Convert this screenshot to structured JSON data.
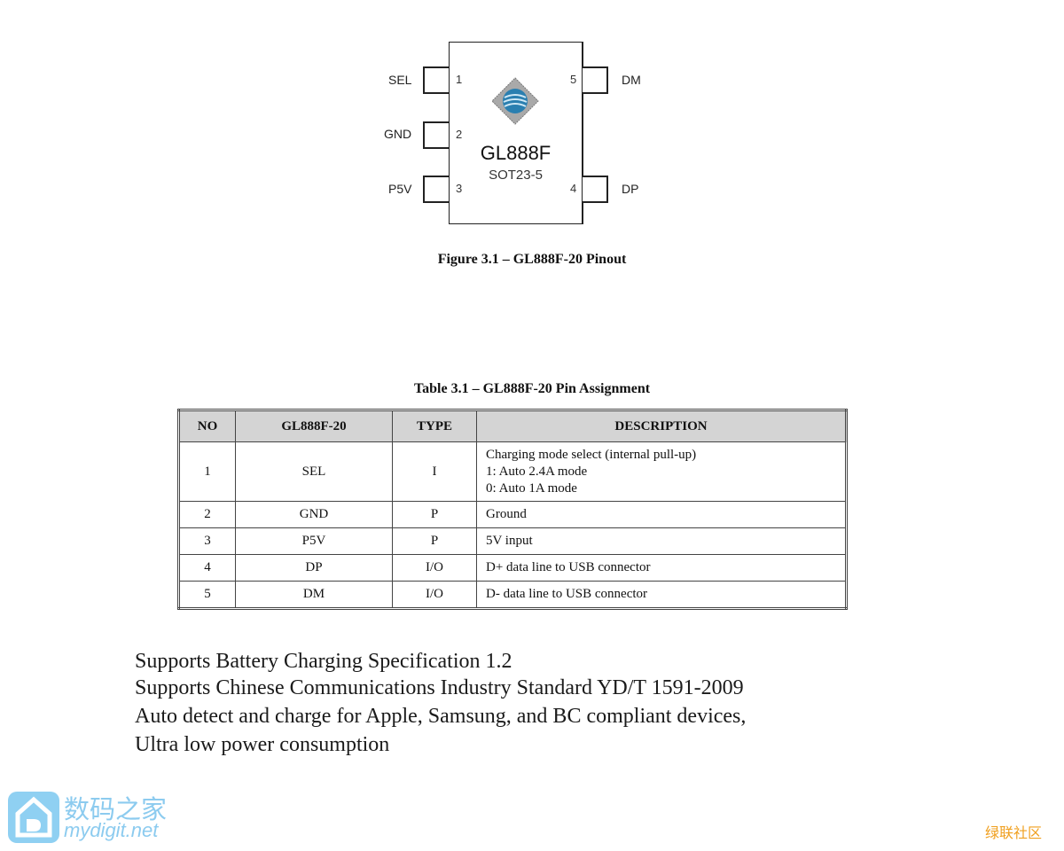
{
  "figure": {
    "chip_name": "GL888F",
    "package": "SOT23-5",
    "pins_left": [
      {
        "num": "1",
        "label": "SEL"
      },
      {
        "num": "2",
        "label": "GND"
      },
      {
        "num": "3",
        "label": "P5V"
      }
    ],
    "pins_right": [
      {
        "num": "5",
        "label": "DM"
      },
      {
        "num": "4",
        "label": "DP"
      }
    ],
    "caption": "Figure 3.1 – GL888F-20 Pinout"
  },
  "table": {
    "caption": "Table 3.1  –  GL888F-20 Pin Assignment",
    "headers": [
      "NO",
      "GL888F-20",
      "TYPE",
      "DESCRIPTION"
    ],
    "rows": [
      {
        "no": "1",
        "name": "SEL",
        "type": "I",
        "desc": [
          "Charging mode select (internal pull-up)",
          "1: Auto 2.4A mode",
          "0: Auto 1A mode"
        ]
      },
      {
        "no": "2",
        "name": "GND",
        "type": "P",
        "desc": [
          "Ground"
        ]
      },
      {
        "no": "3",
        "name": "P5V",
        "type": "P",
        "desc": [
          "5V input"
        ]
      },
      {
        "no": "4",
        "name": "DP",
        "type": "I/O",
        "desc": [
          "D+ data line to USB connector"
        ]
      },
      {
        "no": "5",
        "name": "DM",
        "type": "I/O",
        "desc": [
          "D- data line to USB connector"
        ]
      }
    ]
  },
  "features": [
    "Supports Battery Charging Specification 1.2",
    "Supports Chinese Communications Industry Standard YD/T 1591-2009",
    "Auto detect and charge for Apple, Samsung, and BC compliant devices,",
    "Ultra low power consumption"
  ],
  "watermarks": {
    "left_cn": "数码之家",
    "left_en": "mydigit.net",
    "right": "绿联社区",
    "colors": {
      "left": "#8ccbef",
      "right": "#f0a020"
    }
  }
}
